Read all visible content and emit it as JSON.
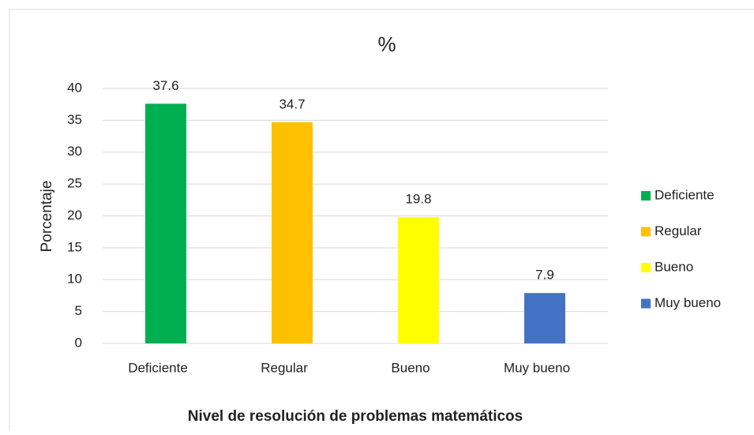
{
  "chart_data": {
    "type": "bar",
    "title": "%",
    "x_label": "Nivel de resolución de problemas matemáticos",
    "y_label": "Porcentaje",
    "categories": [
      "Deficiente",
      "Regular",
      "Bueno",
      "Muy bueno"
    ],
    "values": [
      37.6,
      34.7,
      19.8,
      7.9
    ],
    "colors": [
      "#00b050",
      "#ffc000",
      "#ffff00",
      "#4472c4"
    ],
    "ylim": [
      0,
      40
    ],
    "yticks": [
      0,
      5,
      10,
      15,
      20,
      25,
      30,
      35,
      40
    ],
    "grid": true,
    "legend": "right",
    "data_labels": true
  }
}
